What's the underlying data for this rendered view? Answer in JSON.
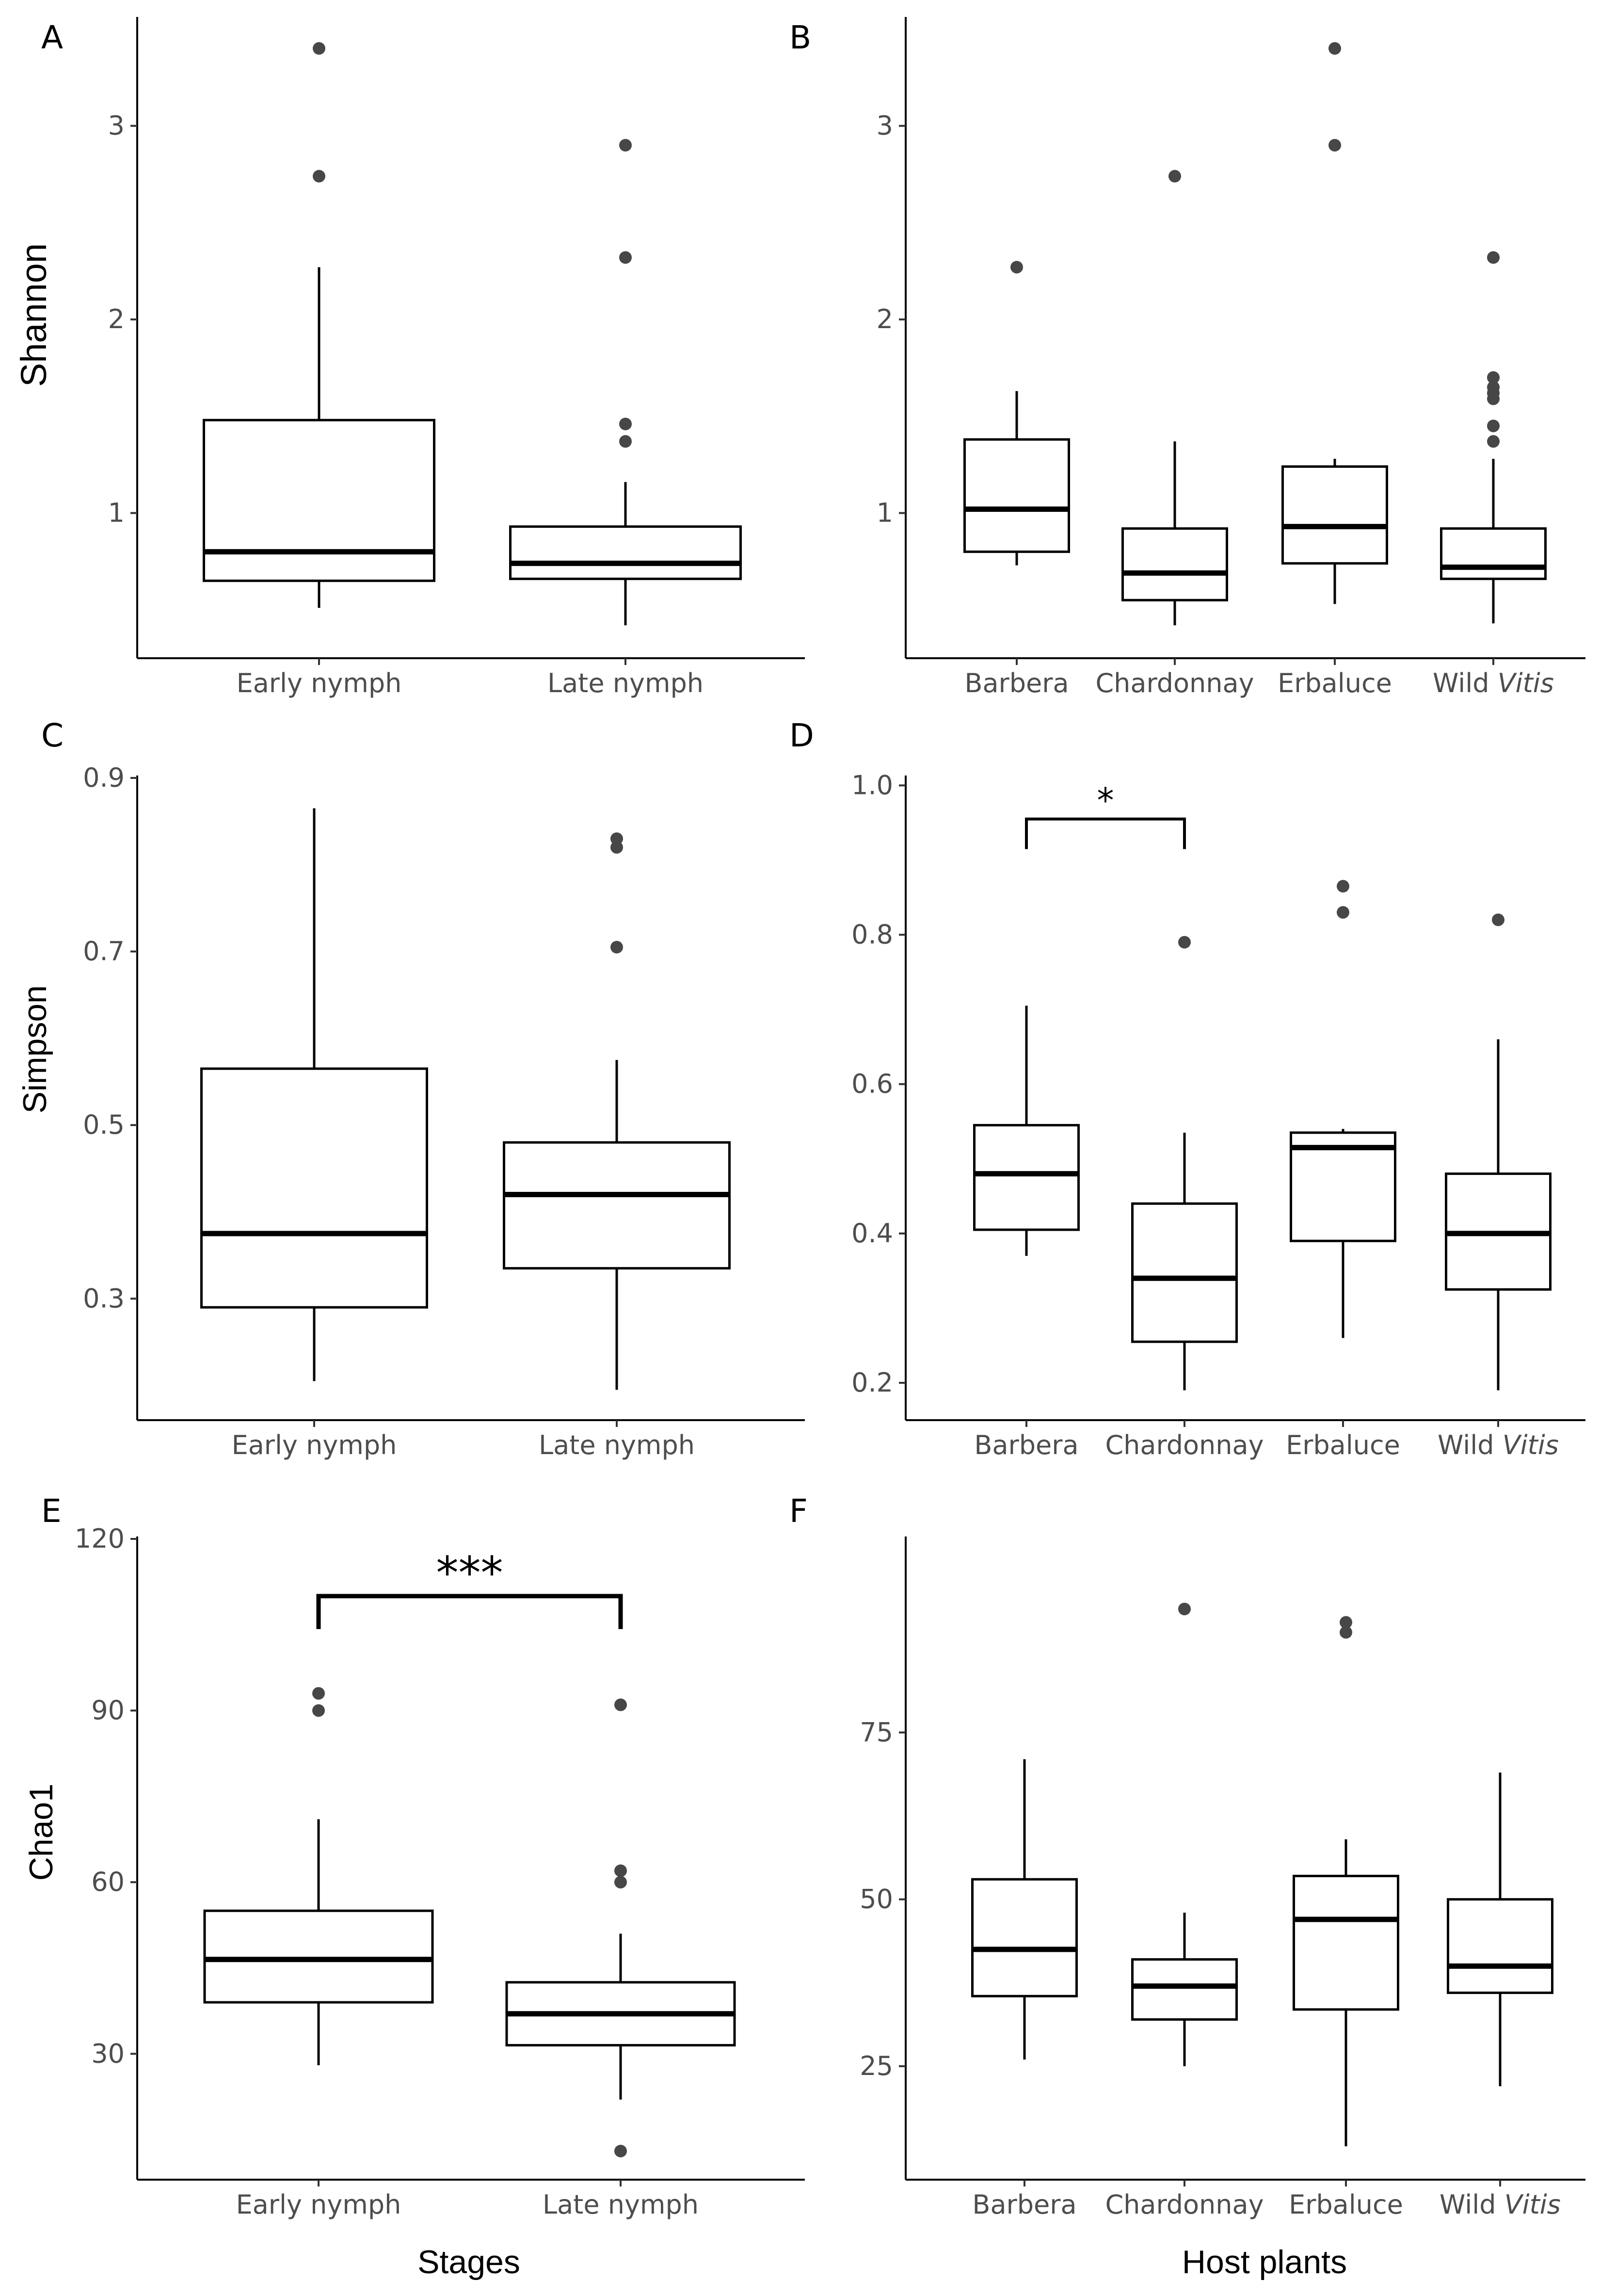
{
  "figure": {
    "x_title_left": "Stages",
    "x_title_right": "Host plants"
  },
  "chart_data": [
    {
      "id": "A",
      "type": "boxplot",
      "ylabel": "Shannon",
      "ylim": [
        0.25,
        3.55
      ],
      "yticks": [
        1,
        2,
        3
      ],
      "ytick_labels": [
        "1",
        "2",
        "3"
      ],
      "categories": [
        "Early nymph",
        "Late nymph"
      ],
      "boxes": [
        {
          "q1": 0.65,
          "median": 0.8,
          "q3": 1.48,
          "whisker_low": 0.51,
          "whisker_high": 2.27,
          "outliers": [
            2.74,
            3.4
          ]
        },
        {
          "q1": 0.66,
          "median": 0.74,
          "q3": 0.93,
          "whisker_low": 0.42,
          "whisker_high": 1.16,
          "outliers": [
            1.37,
            1.46,
            2.32,
            2.9
          ]
        }
      ],
      "significance": null
    },
    {
      "id": "B",
      "type": "boxplot",
      "ylabel": "",
      "ylim": [
        0.25,
        3.55
      ],
      "yticks": [
        1,
        2,
        3
      ],
      "ytick_labels": [
        "1",
        "2",
        "3"
      ],
      "categories": [
        "Barbera",
        "Chardonnay",
        "Erbaluce",
        "Wild Vitis"
      ],
      "italic_suffix_index": 3,
      "boxes": [
        {
          "q1": 0.8,
          "median": 1.02,
          "q3": 1.38,
          "whisker_low": 0.73,
          "whisker_high": 1.63,
          "outliers": [
            2.27
          ]
        },
        {
          "q1": 0.55,
          "median": 0.69,
          "q3": 0.92,
          "whisker_low": 0.42,
          "whisker_high": 1.37,
          "outliers": [
            2.74
          ]
        },
        {
          "q1": 0.74,
          "median": 0.93,
          "q3": 1.24,
          "whisker_low": 0.53,
          "whisker_high": 1.28,
          "outliers": [
            2.9,
            3.4
          ]
        },
        {
          "q1": 0.66,
          "median": 0.72,
          "q3": 0.92,
          "whisker_low": 0.43,
          "whisker_high": 1.28,
          "outliers": [
            1.37,
            1.45,
            1.59,
            1.62,
            1.65,
            1.7,
            2.32
          ]
        }
      ],
      "significance": null
    },
    {
      "id": "C",
      "type": "boxplot",
      "ylabel": "Simpson",
      "ylim": [
        0.16,
        0.9
      ],
      "yticks": [
        0.3,
        0.5,
        0.7,
        0.9
      ],
      "ytick_labels": [
        "0.3",
        "0.5",
        "0.7",
        "0.9"
      ],
      "categories": [
        "Early nymph",
        "Late nymph"
      ],
      "boxes": [
        {
          "q1": 0.29,
          "median": 0.375,
          "q3": 0.565,
          "whisker_low": 0.205,
          "whisker_high": 0.865,
          "outliers": []
        },
        {
          "q1": 0.335,
          "median": 0.42,
          "q3": 0.48,
          "whisker_low": 0.195,
          "whisker_high": 0.575,
          "outliers": [
            0.705,
            0.82,
            0.83
          ]
        }
      ],
      "significance": null
    },
    {
      "id": "D",
      "type": "boxplot",
      "ylabel": "",
      "ylim": [
        0.15,
        1.01
      ],
      "yticks": [
        0.2,
        0.4,
        0.6,
        0.8,
        1.0
      ],
      "ytick_labels": [
        "0.2",
        "0.4",
        "0.6",
        "0.8",
        "1.0"
      ],
      "categories": [
        "Barbera",
        "Chardonnay",
        "Erbaluce",
        "Wild Vitis"
      ],
      "italic_suffix_index": 3,
      "boxes": [
        {
          "q1": 0.405,
          "median": 0.48,
          "q3": 0.545,
          "whisker_low": 0.37,
          "whisker_high": 0.705,
          "outliers": []
        },
        {
          "q1": 0.255,
          "median": 0.34,
          "q3": 0.44,
          "whisker_low": 0.19,
          "whisker_high": 0.535,
          "outliers": [
            0.79
          ]
        },
        {
          "q1": 0.39,
          "median": 0.515,
          "q3": 0.535,
          "whisker_low": 0.26,
          "whisker_high": 0.54,
          "outliers": [
            0.83,
            0.865
          ]
        },
        {
          "q1": 0.325,
          "median": 0.4,
          "q3": 0.48,
          "whisker_low": 0.19,
          "whisker_high": 0.66,
          "outliers": [
            0.82
          ]
        }
      ],
      "significance": {
        "from": 0,
        "to": 1,
        "y": 0.955,
        "label": "*"
      }
    },
    {
      "id": "E",
      "type": "boxplot",
      "ylabel": "Chao1",
      "ylim": [
        8,
        120
      ],
      "yticks": [
        30,
        60,
        90,
        120
      ],
      "ytick_labels": [
        "30",
        "60",
        "90",
        "120"
      ],
      "categories": [
        "Early nymph",
        "Late nymph"
      ],
      "boxes": [
        {
          "q1": 39,
          "median": 46.5,
          "q3": 55,
          "whisker_low": 28,
          "whisker_high": 71,
          "outliers": [
            90,
            93
          ]
        },
        {
          "q1": 31.5,
          "median": 37,
          "q3": 42.5,
          "whisker_low": 22,
          "whisker_high": 51,
          "outliers": [
            13,
            60,
            62,
            91
          ]
        }
      ],
      "significance": {
        "from": 0,
        "to": 1,
        "y": 110,
        "label": "***"
      }
    },
    {
      "id": "F",
      "type": "boxplot",
      "ylabel": "",
      "ylim": [
        8,
        104
      ],
      "yticks": [
        25,
        50,
        75
      ],
      "ytick_labels": [
        "25",
        "50",
        "75"
      ],
      "categories": [
        "Barbera",
        "Chardonnay",
        "Erbaluce",
        "Wild Vitis"
      ],
      "italic_suffix_index": 3,
      "boxes": [
        {
          "q1": 35.5,
          "median": 42.5,
          "q3": 53,
          "whisker_low": 26,
          "whisker_high": 71,
          "outliers": []
        },
        {
          "q1": 32,
          "median": 37,
          "q3": 41,
          "whisker_low": 25,
          "whisker_high": 48,
          "outliers": [
            93.5
          ]
        },
        {
          "q1": 33.5,
          "median": 47,
          "q3": 53.5,
          "whisker_low": 13,
          "whisker_high": 59,
          "outliers": [
            90,
            91.5
          ]
        },
        {
          "q1": 36,
          "median": 40,
          "q3": 50,
          "whisker_low": 22,
          "whisker_high": 69,
          "outliers": []
        }
      ],
      "significance": null
    }
  ]
}
